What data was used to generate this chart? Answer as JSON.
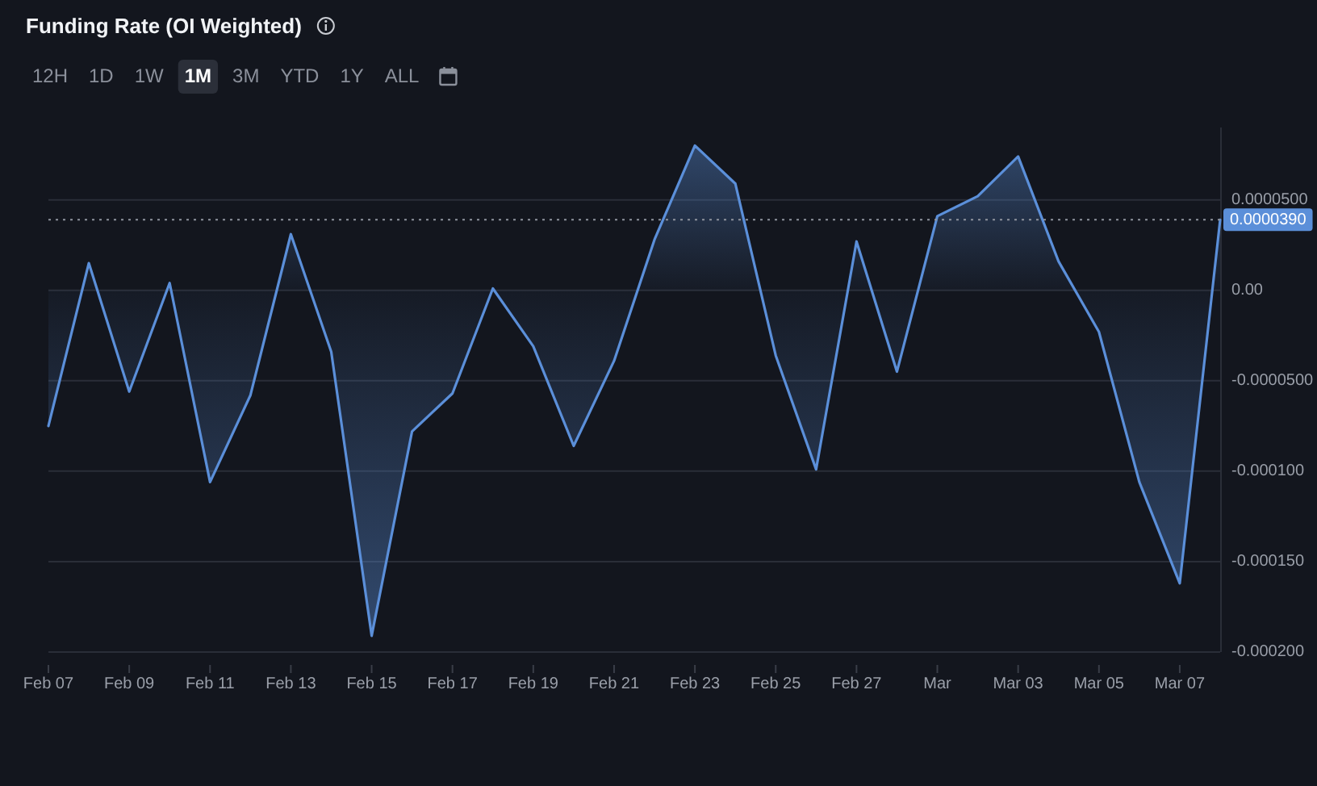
{
  "chart_data": {
    "type": "area",
    "title": "Funding Rate (OI Weighted)",
    "annotations": [
      "12H",
      "1D",
      "1W",
      "1M",
      "3M",
      "YTD",
      "1Y",
      "ALL"
    ],
    "x": [
      "--02-07",
      "--02-08",
      "--02-09",
      "--02-10",
      "--02-11",
      "--02-12",
      "--02-13",
      "--02-14",
      "--02-15",
      "--02-16",
      "--02-17",
      "--02-18",
      "--02-19",
      "--02-20",
      "--02-21",
      "--02-22",
      "--02-23",
      "--02-24",
      "--02-25",
      "--02-26",
      "--02-27",
      "--02-28",
      "--03-01",
      "--03-02",
      "--03-03",
      "--03-04",
      "--03-05",
      "--03-06",
      "--03-07",
      "--03-08"
    ],
    "values": [
      -7.5e-05,
      1.5e-05,
      -5.6e-05,
      4e-06,
      -0.000106,
      -5.8e-05,
      3.1e-05,
      -3.4e-05,
      -0.000191,
      -7.8e-05,
      -5.7e-05,
      1e-06,
      -3.1e-05,
      -8.6e-05,
      -3.9e-05,
      2.8e-05,
      8e-05,
      5.9e-05,
      -3.6e-05,
      -9.9e-05,
      2.7e-05,
      -4.5e-05,
      4.1e-05,
      5.2e-05,
      7.4e-05,
      1.6e-05,
      -2.3e-05,
      -0.000106,
      -0.000162,
      3.9e-05
    ],
    "color": "#5b8fd9",
    "xlim": [
      "--02-07",
      "--03-08"
    ],
    "xticks": [
      {
        "value": "--02-07",
        "label": "Feb 07"
      },
      {
        "value": "--02-09",
        "label": "Feb 09"
      },
      {
        "value": "--02-11",
        "label": "Feb 11"
      },
      {
        "value": "--02-13",
        "label": "Feb 13"
      },
      {
        "value": "--02-15",
        "label": "Feb 15"
      },
      {
        "value": "--02-17",
        "label": "Feb 17"
      },
      {
        "value": "--02-19",
        "label": "Feb 19"
      },
      {
        "value": "--02-21",
        "label": "Feb 21"
      },
      {
        "value": "--02-23",
        "label": "Feb 23"
      },
      {
        "value": "--02-25",
        "label": "Feb 25"
      },
      {
        "value": "--02-27",
        "label": "Feb 27"
      },
      {
        "value": "--03-01",
        "label": "Mar"
      },
      {
        "value": "--03-03",
        "label": "Mar 03"
      },
      {
        "value": "--03-05",
        "label": "Mar 05"
      },
      {
        "value": "--03-07",
        "label": "Mar 07"
      }
    ],
    "ylim": [
      -0.0002,
      9e-05
    ],
    "yticks": [
      {
        "value": 5e-05,
        "label": "0.0000500"
      },
      {
        "value": 0,
        "label": "0.00"
      },
      {
        "value": -5e-05,
        "label": "-0.0000500"
      },
      {
        "value": -0.0001,
        "label": "-0.000100"
      },
      {
        "value": -0.00015,
        "label": "-0.000150"
      },
      {
        "value": -0.0002,
        "label": "-0.000200"
      }
    ],
    "grid": "y",
    "ref_lines": [
      {
        "axis": "y",
        "value": 3.9e-05,
        "label": "0.0000390",
        "color": "#8f949e",
        "line_style": "dotted"
      }
    ]
  }
}
